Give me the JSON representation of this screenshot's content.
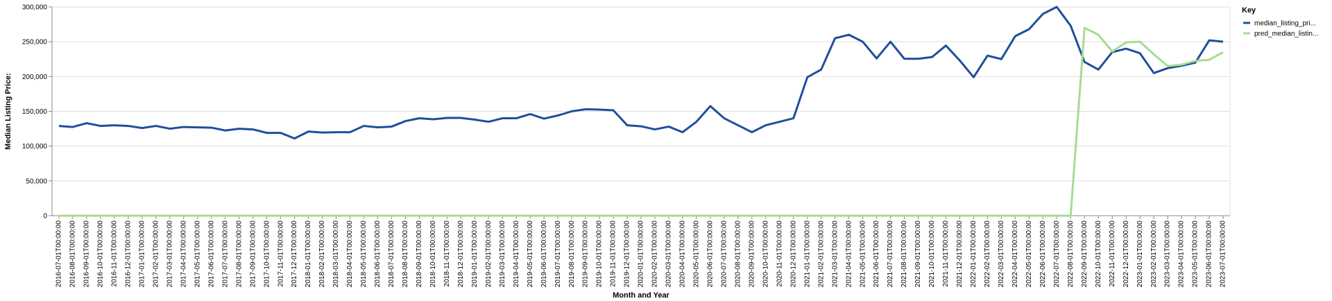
{
  "chart_data": {
    "type": "line",
    "xlabel": "Month and Year",
    "ylabel": "Median Listing Price:",
    "ylim": [
      0,
      300000
    ],
    "yticks": [
      "0",
      "50,000",
      "100,000",
      "150,000",
      "200,000",
      "250,000",
      "300,000"
    ],
    "grid": true,
    "legend_position": "right",
    "legend_title": "Key",
    "x": [
      "2016-07-01T00:00:00",
      "2016-08-01T00:00:00",
      "2016-09-01T00:00:00",
      "2016-10-01T00:00:00",
      "2016-11-01T00:00:00",
      "2016-12-01T00:00:00",
      "2017-01-01T00:00:00",
      "2017-02-01T00:00:00",
      "2017-03-01T00:00:00",
      "2017-04-01T00:00:00",
      "2017-05-01T00:00:00",
      "2017-06-01T00:00:00",
      "2017-07-01T00:00:00",
      "2017-08-01T00:00:00",
      "2017-09-01T00:00:00",
      "2017-10-01T00:00:00",
      "2017-11-01T00:00:00",
      "2017-12-01T00:00:00",
      "2018-01-01T00:00:00",
      "2018-02-01T00:00:00",
      "2018-03-01T00:00:00",
      "2018-04-01T00:00:00",
      "2018-05-01T00:00:00",
      "2018-06-01T00:00:00",
      "2018-07-01T00:00:00",
      "2018-08-01T00:00:00",
      "2018-09-01T00:00:00",
      "2018-10-01T00:00:00",
      "2018-11-01T00:00:00",
      "2018-12-01T00:00:00",
      "2019-01-01T00:00:00",
      "2019-02-01T00:00:00",
      "2019-03-01T00:00:00",
      "2019-04-01T00:00:00",
      "2019-05-01T00:00:00",
      "2019-06-01T00:00:00",
      "2019-07-01T00:00:00",
      "2019-08-01T00:00:00",
      "2019-09-01T00:00:00",
      "2019-10-01T00:00:00",
      "2019-11-01T00:00:00",
      "2019-12-01T00:00:00",
      "2020-01-01T00:00:00",
      "2020-02-01T00:00:00",
      "2020-03-01T00:00:00",
      "2020-04-01T00:00:00",
      "2020-05-01T00:00:00",
      "2020-06-01T00:00:00",
      "2020-07-01T00:00:00",
      "2020-08-01T00:00:00",
      "2020-09-01T00:00:00",
      "2020-10-01T00:00:00",
      "2020-11-01T00:00:00",
      "2020-12-01T00:00:00",
      "2021-01-01T00:00:00",
      "2021-02-01T00:00:00",
      "2021-03-01T00:00:00",
      "2021-04-01T00:00:00",
      "2021-05-01T00:00:00",
      "2021-06-01T00:00:00",
      "2021-07-01T00:00:00",
      "2021-08-01T00:00:00",
      "2021-09-01T00:00:00",
      "2021-10-01T00:00:00",
      "2021-11-01T00:00:00",
      "2021-12-01T00:00:00",
      "2022-01-01T00:00:00",
      "2022-02-01T00:00:00",
      "2022-03-01T00:00:00",
      "2022-04-01T00:00:00",
      "2022-05-01T00:00:00",
      "2022-06-01T00:00:00",
      "2022-07-01T00:00:00",
      "2022-08-01T00:00:00",
      "2022-09-01T00:00:00",
      "2022-10-01T00:00:00",
      "2022-11-01T00:00:00",
      "2022-12-01T00:00:00",
      "2023-01-01T00:00:00",
      "2023-02-01T00:00:00",
      "2023-03-01T00:00:00",
      "2023-04-01T00:00:00",
      "2023-05-01T00:00:00",
      "2023-06-01T00:00:00",
      "2023-07-01T00:00:00"
    ],
    "series": [
      {
        "name": "median_listing_pri...",
        "color": "#1f4e9c",
        "values": [
          129000,
          127500,
          133000,
          129000,
          130000,
          129000,
          126000,
          129000,
          125000,
          127500,
          127000,
          126500,
          122500,
          125000,
          124000,
          119000,
          119000,
          111000,
          121000,
          119500,
          120000,
          120000,
          129000,
          127000,
          128000,
          136000,
          140000,
          138500,
          140500,
          140500,
          138000,
          135000,
          140000,
          140000,
          146000,
          139500,
          144000,
          150000,
          153000,
          152500,
          151500,
          130000,
          128500,
          124000,
          128000,
          120000,
          135000,
          157500,
          140000,
          130000,
          120000,
          130000,
          135000,
          140000,
          199000,
          210000,
          255000,
          260000,
          250000,
          226000,
          250000,
          225500,
          225500,
          228000,
          244500,
          223000,
          199000,
          230000,
          225000,
          258000,
          268000,
          290000,
          300000,
          273000,
          221000,
          210000,
          235000,
          240000,
          233500,
          205000,
          212000,
          215500,
          220000,
          252000,
          250000
        ]
      },
      {
        "name": "pred_median_listin...",
        "color": "#a4dc95",
        "values": [
          0,
          0,
          0,
          0,
          0,
          0,
          0,
          0,
          0,
          0,
          0,
          0,
          0,
          0,
          0,
          0,
          0,
          0,
          0,
          0,
          0,
          0,
          0,
          0,
          0,
          0,
          0,
          0,
          0,
          0,
          0,
          0,
          0,
          0,
          0,
          0,
          0,
          0,
          0,
          0,
          0,
          0,
          0,
          0,
          0,
          0,
          0,
          0,
          0,
          0,
          0,
          0,
          0,
          0,
          0,
          0,
          0,
          0,
          0,
          0,
          0,
          0,
          0,
          0,
          0,
          0,
          0,
          0,
          0,
          0,
          0,
          0,
          0,
          0,
          270000,
          260000,
          236000,
          249000,
          250000,
          232000,
          215000,
          217000,
          222500,
          224000,
          235000
        ]
      }
    ]
  }
}
